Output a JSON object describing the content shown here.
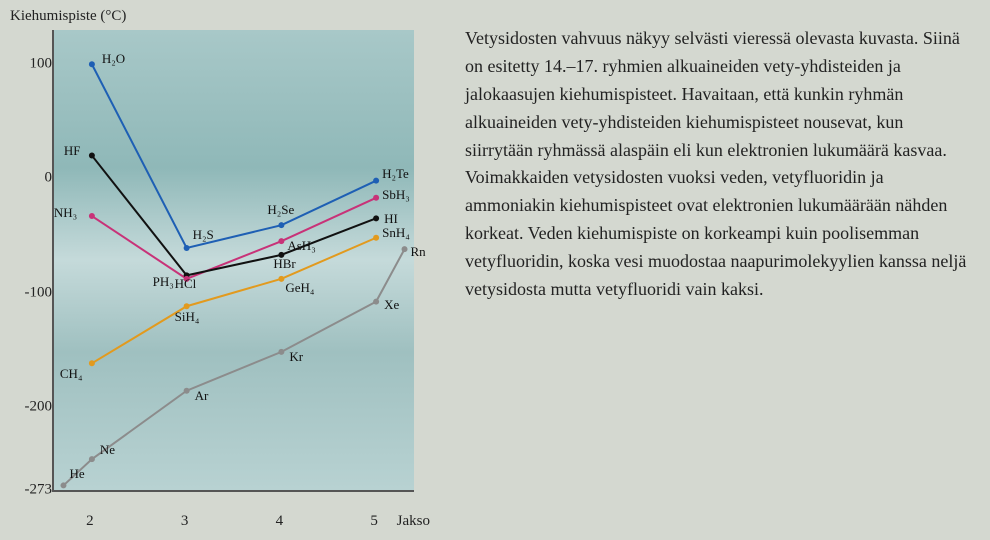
{
  "chart": {
    "type": "line",
    "ylabel": "Kiehumispiste (°C)",
    "xlabel": "Jakso",
    "ylim": [
      -273,
      130
    ],
    "yticks": [
      -273,
      -200,
      -100,
      0,
      100
    ],
    "xlim": [
      1.6,
      5.4
    ],
    "xticks": [
      2,
      3,
      4,
      5
    ],
    "background_colors": [
      "#a8c8c8",
      "#8fb8b8",
      "#c5dada",
      "#9fc0c0",
      "#b8d2d2"
    ],
    "label_fontsize": 13,
    "axis_fontsize": 15,
    "line_width": 2,
    "marker_radius": 3,
    "series": [
      {
        "name": "group16",
        "color": "#1e5fb4",
        "points": [
          {
            "x": 2,
            "y": 100,
            "label": "H₂O",
            "dx": 10,
            "dy": -6
          },
          {
            "x": 3,
            "y": -61,
            "label": "H₂S",
            "dx": 6,
            "dy": -14
          },
          {
            "x": 4,
            "y": -41,
            "label": "H₂Se",
            "dx": -14,
            "dy": -16
          },
          {
            "x": 5,
            "y": -2,
            "label": "H₂Te",
            "dx": 6,
            "dy": -8
          }
        ]
      },
      {
        "name": "group17",
        "color": "#111111",
        "points": [
          {
            "x": 2,
            "y": 20,
            "label": "HF",
            "dx": -28,
            "dy": -6
          },
          {
            "x": 3,
            "y": -85,
            "label": "HCl",
            "dx": -12,
            "dy": 8
          },
          {
            "x": 4,
            "y": -67,
            "label": "HBr",
            "dx": -8,
            "dy": 8
          },
          {
            "x": 5,
            "y": -35,
            "label": "HI",
            "dx": 8,
            "dy": 0
          }
        ]
      },
      {
        "name": "group15",
        "color": "#c83278",
        "points": [
          {
            "x": 2,
            "y": -33,
            "label": "NH₃",
            "dx": -38,
            "dy": -4
          },
          {
            "x": 3,
            "y": -88,
            "label": "PH₃",
            "dx": -34,
            "dy": 2
          },
          {
            "x": 4,
            "y": -55,
            "label": "AsH₃",
            "dx": 6,
            "dy": 4
          },
          {
            "x": 5,
            "y": -17,
            "label": "SbH₃",
            "dx": 6,
            "dy": -4
          }
        ]
      },
      {
        "name": "group14",
        "color": "#e29a1e",
        "points": [
          {
            "x": 2,
            "y": -162,
            "label": "CH₄",
            "dx": -32,
            "dy": 10
          },
          {
            "x": 3,
            "y": -112,
            "label": "SiH₄",
            "dx": -12,
            "dy": 10
          },
          {
            "x": 4,
            "y": -88,
            "label": "GeH₄",
            "dx": 4,
            "dy": 8
          },
          {
            "x": 5,
            "y": -52,
            "label": "SnH₄",
            "dx": 6,
            "dy": -6
          }
        ]
      },
      {
        "name": "noble",
        "color": "#8c8c8c",
        "points": [
          {
            "x": 1.7,
            "y": -269,
            "label": "He",
            "dx": 6,
            "dy": -12
          },
          {
            "x": 2,
            "y": -246,
            "label": "Ne",
            "dx": 8,
            "dy": -10
          },
          {
            "x": 3,
            "y": -186,
            "label": "Ar",
            "dx": 8,
            "dy": 4
          },
          {
            "x": 4,
            "y": -152,
            "label": "Kr",
            "dx": 8,
            "dy": 4
          },
          {
            "x": 5,
            "y": -108,
            "label": "Xe",
            "dx": 8,
            "dy": 2
          },
          {
            "x": 5.3,
            "y": -62,
            "label": "Rn",
            "dx": 6,
            "dy": 2
          }
        ]
      }
    ]
  },
  "paragraph": "Vetysidosten vahvuus näkyy selvästi vieressä olevasta kuvasta. Siinä on esitetty 14.–17. ryhmien alkuaineiden vety-yhdisteiden ja jalokaasujen kiehumispisteet. Havaitaan, että kunkin ryhmän alkuaineiden vety-yhdisteiden kiehumispisteet nousevat, kun siirrytään ryhmässä alaspäin eli kun elektronien lukumäärä kasvaa. Voimakkaiden vetysidosten vuoksi veden, vetyfluoridin ja ammoniakin kiehumispisteet ovat elektronien lukumäärään nähden korkeat. Veden kiehumispiste on korkeampi kuin poolisemman vetyfluoridin, koska vesi muodostaa naapurimolekyylien kanssa neljä vetysidosta mutta vetyfluoridi vain kaksi."
}
